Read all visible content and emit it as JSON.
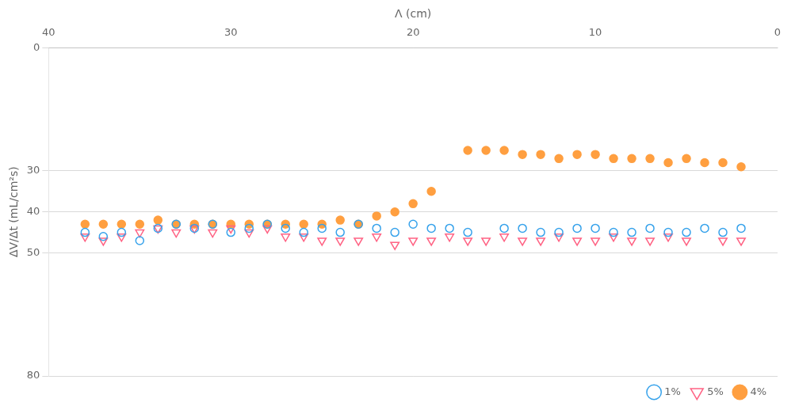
{
  "chart_data": {
    "type": "scatter",
    "x_label": "Λ (cm)",
    "y_label": "ΔV/Δt (mL/cm²s)",
    "xlim": [
      40,
      0
    ],
    "ylim": [
      80,
      0
    ],
    "xticks": [
      40,
      30,
      20,
      10,
      0
    ],
    "yticks": [
      0,
      30,
      40,
      50,
      80
    ],
    "grid": "y",
    "legend": "lower right",
    "series": [
      {
        "name": "1%",
        "marker": "open circle",
        "x": [
          38,
          37,
          36,
          35,
          34,
          33,
          32,
          31,
          30,
          29,
          28,
          27,
          26,
          25,
          24,
          23,
          22,
          21,
          20,
          19,
          18,
          17,
          15,
          14,
          13,
          12,
          11,
          10,
          9,
          8,
          7,
          6,
          5,
          4,
          3,
          2
        ],
        "values": [
          45,
          46,
          45,
          47,
          44,
          43,
          44,
          43,
          45,
          44,
          43,
          44,
          45,
          44,
          45,
          43,
          44,
          45,
          43,
          44,
          44,
          45,
          44,
          44,
          45,
          45,
          44,
          44,
          45,
          45,
          44,
          45,
          45,
          44,
          45,
          44
        ]
      },
      {
        "name": "5%",
        "marker": "open triangle down",
        "x": [
          38,
          37,
          36,
          35,
          34,
          33,
          32,
          31,
          30,
          29,
          28,
          27,
          26,
          25,
          24,
          23,
          22,
          21,
          20,
          19,
          18,
          17,
          16,
          15,
          14,
          13,
          12,
          11,
          10,
          9,
          8,
          7,
          6,
          5,
          3,
          2
        ],
        "values": [
          46,
          47,
          46,
          45,
          44,
          45,
          44,
          45,
          44,
          45,
          44,
          46,
          46,
          47,
          47,
          47,
          46,
          48,
          47,
          47,
          46,
          47,
          47,
          46,
          47,
          47,
          46,
          47,
          47,
          46,
          47,
          47,
          46,
          47,
          47,
          47
        ]
      },
      {
        "name": "4%",
        "marker": "filled circle",
        "x": [
          38,
          37,
          36,
          35,
          34,
          33,
          32,
          31,
          30,
          29,
          28,
          27,
          26,
          25,
          24,
          23,
          22,
          21,
          20,
          19,
          17,
          16,
          15,
          14,
          13,
          12,
          11,
          10,
          9,
          8,
          7,
          6,
          5,
          4,
          3,
          2
        ],
        "values": [
          43,
          43,
          43,
          43,
          42,
          43,
          43,
          43,
          43,
          43,
          43,
          43,
          43,
          43,
          42,
          43,
          41,
          40,
          38,
          35,
          25,
          25,
          25,
          26,
          26,
          27,
          26,
          26,
          27,
          27,
          27,
          28,
          27,
          28,
          28,
          29
        ]
      }
    ]
  }
}
